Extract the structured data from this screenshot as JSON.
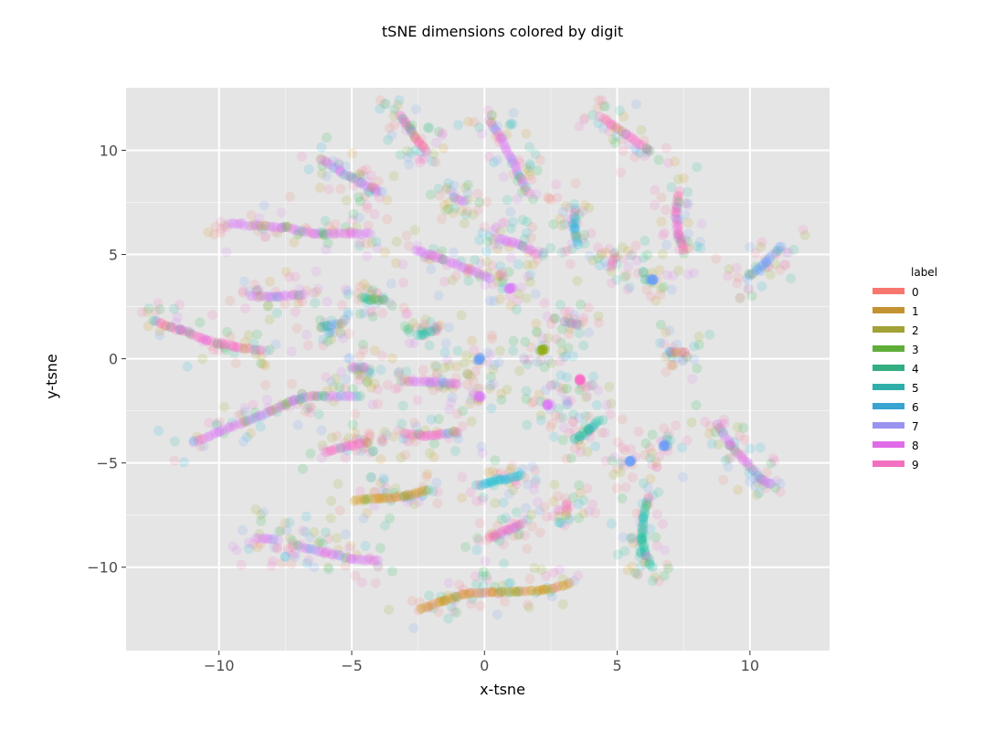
{
  "chart_data": {
    "type": "scatter",
    "title": "tSNE dimensions colored by digit",
    "xlabel": "x-tsne",
    "ylabel": "y-tsne",
    "xlim": [
      -13.5,
      13
    ],
    "ylim": [
      -14,
      13
    ],
    "xticks": [
      -10,
      -5,
      0,
      5,
      10
    ],
    "yticks": [
      -10,
      -5,
      0,
      5,
      10
    ],
    "xtick_labels": [
      "−10",
      "−5",
      "0",
      "5",
      "10"
    ],
    "ytick_labels": [
      "−10",
      "−5",
      "0",
      "5",
      "10"
    ],
    "grid": true,
    "legend": {
      "title": "label",
      "position": "right",
      "entries": [
        "0",
        "1",
        "2",
        "3",
        "4",
        "5",
        "6",
        "7",
        "8",
        "9"
      ]
    },
    "colors": {
      "0": "#f8766d",
      "1": "#d39200",
      "2": "#93aa00",
      "3": "#00ba38",
      "4": "#00c19f",
      "5": "#00b9e3",
      "6": "#619cff",
      "7": "#db72fb",
      "8": "#ff61c3",
      "9": "#ff6c91",
      "panel": "#e5e5e5",
      "grid": "#ffffff"
    },
    "legend_colors": [
      "#f8766d",
      "#c59232",
      "#a2a236",
      "#5fae3a",
      "#34ad81",
      "#30aeaa",
      "#39a3d2",
      "#9a93ef",
      "#e06be8",
      "#f170c0"
    ],
    "strands": [
      {
        "label": "8",
        "points": [
          [
            -12.4,
            1.8
          ],
          [
            -11.5,
            1.4
          ],
          [
            -10.5,
            0.9
          ],
          [
            -9.5,
            0.6
          ],
          [
            -8.4,
            0.4
          ]
        ]
      },
      {
        "label": "7",
        "points": [
          [
            -11.0,
            -4.0
          ],
          [
            -10.0,
            -3.5
          ],
          [
            -9.0,
            -3.0
          ],
          [
            -8.0,
            -2.5
          ],
          [
            -7.2,
            -2.0
          ],
          [
            -6.4,
            -1.8
          ],
          [
            -5.0,
            -1.8
          ]
        ]
      },
      {
        "label": "7",
        "points": [
          [
            -9.6,
            6.5
          ],
          [
            -8.6,
            6.4
          ],
          [
            -7.6,
            6.3
          ],
          [
            -6.4,
            6.0
          ],
          [
            -5.0,
            6.0
          ],
          [
            -4.3,
            6.0
          ]
        ]
      },
      {
        "label": "7",
        "points": [
          [
            -6.2,
            9.6
          ],
          [
            -5.4,
            9.0
          ],
          [
            -4.6,
            8.4
          ],
          [
            -3.9,
            8.0
          ]
        ]
      },
      {
        "label": "7",
        "points": [
          [
            -8.8,
            3.0
          ],
          [
            -7.8,
            3.0
          ],
          [
            -6.8,
            3.1
          ]
        ]
      },
      {
        "label": "8",
        "points": [
          [
            -6.0,
            -4.5
          ],
          [
            -5.2,
            -4.2
          ],
          [
            -4.4,
            -4.0
          ]
        ]
      },
      {
        "label": "6",
        "points": [
          [
            -6.2,
            1.5
          ],
          [
            -5.4,
            1.7
          ]
        ]
      },
      {
        "label": "7",
        "points": [
          [
            -5.0,
            -0.4
          ],
          [
            -4.5,
            -0.4
          ]
        ]
      },
      {
        "label": "7",
        "points": [
          [
            -8.6,
            -8.6
          ],
          [
            -7.8,
            -8.7
          ]
        ]
      },
      {
        "label": "7",
        "points": [
          [
            -7.0,
            -9.0
          ],
          [
            -6.0,
            -9.3
          ],
          [
            -5.0,
            -9.6
          ],
          [
            -4.0,
            -9.7
          ]
        ]
      },
      {
        "label": "1",
        "points": [
          [
            -4.9,
            -6.8
          ],
          [
            -4.0,
            -6.7
          ],
          [
            -3.0,
            -6.6
          ],
          [
            -2.1,
            -6.3
          ]
        ]
      },
      {
        "label": "3",
        "points": [
          [
            -4.6,
            2.9
          ],
          [
            -3.8,
            2.8
          ]
        ]
      },
      {
        "label": "8",
        "points": [
          [
            -3.2,
            11.7
          ],
          [
            -2.8,
            11.0
          ],
          [
            -2.5,
            10.4
          ],
          [
            -2.2,
            10.0
          ]
        ]
      },
      {
        "label": "7",
        "points": [
          [
            -2.6,
            5.2
          ],
          [
            -1.6,
            4.8
          ],
          [
            -0.6,
            4.3
          ],
          [
            0.2,
            3.9
          ]
        ]
      },
      {
        "label": "4",
        "points": [
          [
            -2.5,
            1.1
          ],
          [
            -1.8,
            1.4
          ]
        ]
      },
      {
        "label": "7",
        "points": [
          [
            -3.0,
            -1.1
          ],
          [
            -2.0,
            -1.1
          ],
          [
            -1.0,
            -1.2
          ]
        ]
      },
      {
        "label": "8",
        "points": [
          [
            -3.0,
            -3.6
          ],
          [
            -2.0,
            -3.7
          ],
          [
            -1.0,
            -3.5
          ]
        ]
      },
      {
        "label": "7",
        "points": [
          [
            -1.2,
            7.8
          ],
          [
            -0.8,
            7.5
          ]
        ]
      },
      {
        "label": "1",
        "points": [
          [
            -2.4,
            -12.0
          ],
          [
            -1.6,
            -11.6
          ],
          [
            -0.8,
            -11.3
          ],
          [
            0.2,
            -11.2
          ],
          [
            1.2,
            -11.2
          ],
          [
            2.2,
            -11.1
          ],
          [
            3.2,
            -10.8
          ]
        ]
      },
      {
        "label": "7",
        "points": [
          [
            0.2,
            11.4
          ],
          [
            0.6,
            10.6
          ],
          [
            1.0,
            9.6
          ],
          [
            1.4,
            8.6
          ],
          [
            1.6,
            8.0
          ]
        ]
      },
      {
        "label": "7",
        "points": [
          [
            0.5,
            5.8
          ],
          [
            1.3,
            5.5
          ],
          [
            2.0,
            5.0
          ]
        ]
      },
      {
        "label": "6",
        "points": [
          [
            -0.2,
            0.0
          ]
        ]
      },
      {
        "label": "7",
        "points": [
          [
            -0.2,
            -1.8
          ]
        ]
      },
      {
        "label": "5",
        "points": [
          [
            -0.3,
            -6.1
          ],
          [
            0.6,
            -5.8
          ],
          [
            1.4,
            -5.6
          ]
        ]
      },
      {
        "label": "8",
        "points": [
          [
            0.2,
            -8.6
          ],
          [
            0.9,
            -8.2
          ],
          [
            1.4,
            -7.9
          ]
        ]
      },
      {
        "label": "7",
        "points": [
          [
            1.0,
            3.4
          ]
        ]
      },
      {
        "label": "2",
        "points": [
          [
            2.2,
            0.4
          ]
        ]
      },
      {
        "label": "7",
        "points": [
          [
            2.4,
            -2.2
          ]
        ]
      },
      {
        "label": "5",
        "points": [
          [
            3.4,
            7.2
          ],
          [
            3.4,
            6.2
          ],
          [
            3.5,
            5.5
          ]
        ]
      },
      {
        "label": "6",
        "points": [
          [
            3.0,
            1.8
          ],
          [
            3.5,
            1.6
          ]
        ]
      },
      {
        "label": "8",
        "points": [
          [
            3.6,
            -1.0
          ]
        ]
      },
      {
        "label": "4",
        "points": [
          [
            3.4,
            -3.9
          ],
          [
            3.9,
            -3.4
          ],
          [
            4.4,
            -2.9
          ]
        ]
      },
      {
        "label": "9",
        "points": [
          [
            3.1,
            -6.9
          ],
          [
            3.1,
            -7.5
          ]
        ]
      },
      {
        "label": "8",
        "points": [
          [
            4.4,
            11.6
          ],
          [
            5.3,
            10.8
          ],
          [
            6.2,
            10.0
          ]
        ]
      },
      {
        "label": "9",
        "points": [
          [
            4.9,
            5.0
          ],
          [
            4.8,
            4.4
          ]
        ]
      },
      {
        "label": "8",
        "points": [
          [
            7.3,
            8.0
          ],
          [
            7.2,
            7.0
          ],
          [
            7.3,
            6.0
          ],
          [
            7.5,
            5.2
          ]
        ]
      },
      {
        "label": "6",
        "points": [
          [
            6.3,
            3.8
          ]
        ]
      },
      {
        "label": "4",
        "points": [
          [
            6.2,
            -6.6
          ],
          [
            6.0,
            -7.6
          ],
          [
            5.9,
            -8.6
          ],
          [
            6.1,
            -9.4
          ],
          [
            6.3,
            -10.0
          ]
        ]
      },
      {
        "label": "6",
        "points": [
          [
            5.5,
            -4.9
          ]
        ]
      },
      {
        "label": "6",
        "points": [
          [
            6.8,
            -4.2
          ]
        ]
      },
      {
        "label": "6",
        "points": [
          [
            9.9,
            3.9
          ],
          [
            10.6,
            4.6
          ],
          [
            11.2,
            5.4
          ]
        ]
      },
      {
        "label": "7",
        "points": [
          [
            8.8,
            -3.2
          ],
          [
            9.3,
            -4.2
          ],
          [
            9.9,
            -5.0
          ],
          [
            10.4,
            -5.8
          ],
          [
            10.8,
            -6.0
          ]
        ]
      },
      {
        "label": "9",
        "points": [
          [
            7.0,
            0.3
          ],
          [
            7.6,
            0.3
          ]
        ]
      }
    ]
  }
}
